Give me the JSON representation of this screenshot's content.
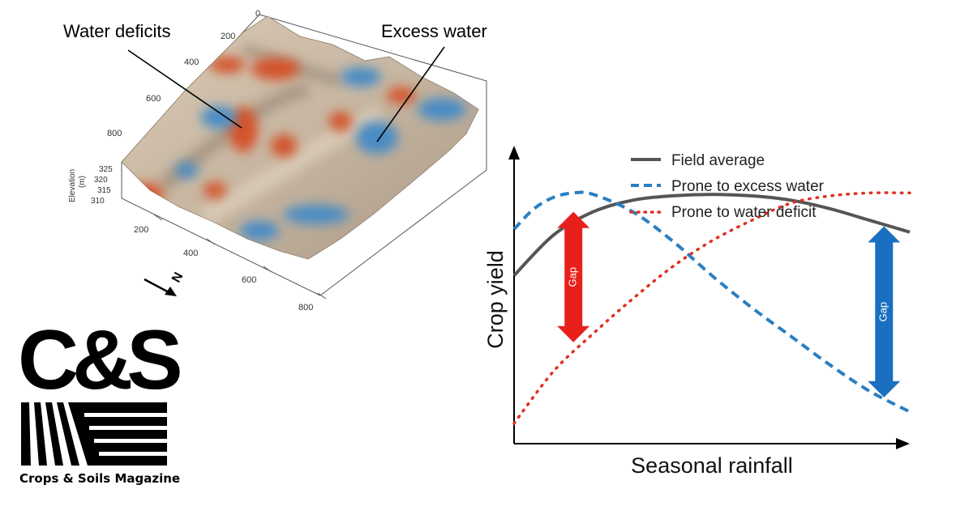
{
  "terrain": {
    "callout_left": "Water deficits",
    "callout_right": "Excess water",
    "axis_top_ticks": [
      "0",
      "200",
      "400",
      "600",
      "800"
    ],
    "axis_bottom_ticks": [
      "200",
      "400",
      "600",
      "800"
    ],
    "elevation_label": "Elevation",
    "elevation_unit": "(m)",
    "elevation_ticks": [
      "325",
      "320",
      "315",
      "310"
    ],
    "north_label": "N",
    "colors": {
      "surface": "#c8b8a4",
      "deficit": "#d4522b",
      "excess": "#4a8cc4",
      "shadow": "#5e5650"
    }
  },
  "chart_data": {
    "type": "line",
    "xlabel": "Seasonal rainfall",
    "ylabel": "Crop yield",
    "series": [
      {
        "name": "Field average",
        "style": "solid",
        "color": "#555555",
        "x": [
          0,
          0.1,
          0.2,
          0.3,
          0.4,
          0.5,
          0.6,
          0.7,
          0.8,
          0.9,
          1.0
        ],
        "y": [
          0.58,
          0.72,
          0.8,
          0.84,
          0.855,
          0.86,
          0.855,
          0.84,
          0.81,
          0.77,
          0.73
        ]
      },
      {
        "name": "Prone to excess water",
        "style": "dashed",
        "color": "#2b7fc1",
        "x": [
          0,
          0.05,
          0.1,
          0.15,
          0.2,
          0.3,
          0.4,
          0.5,
          0.6,
          0.7,
          0.8,
          0.9,
          1.0
        ],
        "y": [
          0.74,
          0.81,
          0.85,
          0.865,
          0.86,
          0.8,
          0.7,
          0.58,
          0.47,
          0.37,
          0.27,
          0.18,
          0.11
        ]
      },
      {
        "name": "Prone to water deficit",
        "style": "dotted",
        "color": "#e03020",
        "x": [
          0,
          0.1,
          0.2,
          0.3,
          0.4,
          0.5,
          0.6,
          0.7,
          0.8,
          0.9,
          1.0
        ],
        "y": [
          0.07,
          0.25,
          0.38,
          0.5,
          0.61,
          0.7,
          0.77,
          0.83,
          0.855,
          0.865,
          0.865
        ]
      }
    ],
    "gaps": [
      {
        "label": "Gap",
        "x": 0.15,
        "from": 0.8,
        "to": 0.35,
        "color": "#e8201c"
      },
      {
        "label": "Gap",
        "x": 0.935,
        "from": 0.75,
        "to": 0.16,
        "color": "#1a6fc0"
      }
    ],
    "xlim": [
      0,
      1
    ],
    "ylim": [
      0,
      1
    ],
    "legend": "top-right"
  },
  "logo": {
    "mark": "C&S",
    "caption": "Crops & Soils Magazine"
  }
}
